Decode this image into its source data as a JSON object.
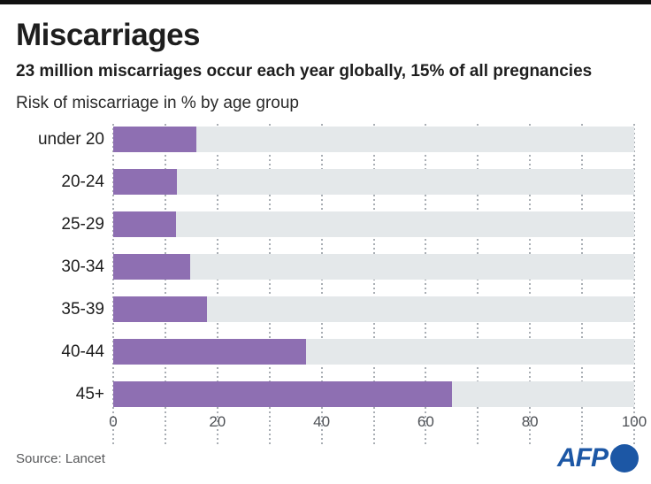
{
  "header": {
    "bar_color": "#111111",
    "title": "Miscarriages",
    "subtitle": "23 million miscarriages occur each year globally, 15% of all pregnancies"
  },
  "chart_data": {
    "type": "bar",
    "orientation": "horizontal",
    "title": "Risk of miscarriage in % by age group",
    "categories": [
      "under 20",
      "20-24",
      "25-29",
      "30-34",
      "35-39",
      "40-44",
      "45+"
    ],
    "values": [
      16,
      12.3,
      12,
      14.7,
      18,
      37,
      65
    ],
    "xlabel": "",
    "ylabel": "",
    "xlim": [
      0,
      100
    ],
    "x_ticks": [
      0,
      20,
      40,
      60,
      80,
      100
    ],
    "grid_interval": 10,
    "grid_on": true,
    "legend": null,
    "bar_color": "#8e6fb2",
    "track_color": "#e4e8ea",
    "grid_color": "#a9aeb4"
  },
  "footer": {
    "source": "Source: Lancet",
    "logo_text": "AFP",
    "logo_color": "#1c57a5"
  }
}
